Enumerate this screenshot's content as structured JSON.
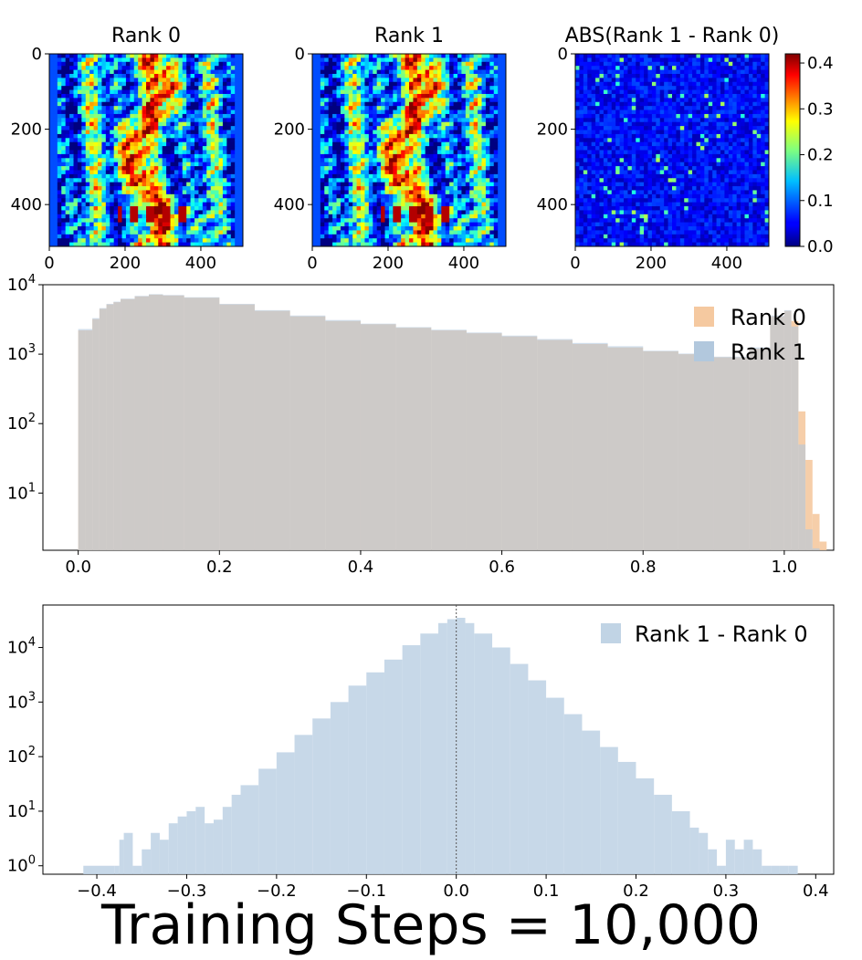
{
  "figure_title": "Training Steps = 10,000",
  "chart_data": [
    {
      "type": "heatmap",
      "title": "Rank 0",
      "x_ticks": [
        0,
        200,
        400
      ],
      "y_ticks": [
        0,
        200,
        400
      ],
      "xlim": [
        0,
        511
      ],
      "ylim": [
        511,
        0
      ],
      "colormap": "jet"
    },
    {
      "type": "heatmap",
      "title": "Rank 1",
      "x_ticks": [
        0,
        200,
        400
      ],
      "y_ticks": [
        0,
        200,
        400
      ],
      "xlim": [
        0,
        511
      ],
      "ylim": [
        511,
        0
      ],
      "colormap": "jet"
    },
    {
      "type": "heatmap",
      "title": "ABS(Rank 1 - Rank 0)",
      "x_ticks": [
        0,
        200,
        400
      ],
      "y_ticks": [
        0,
        200,
        400
      ],
      "xlim": [
        0,
        511
      ],
      "ylim": [
        511,
        0
      ],
      "colormap": "jet",
      "colorbar": {
        "range": [
          0.0,
          0.42
        ],
        "ticks": [
          "0.0",
          "0.1",
          "0.2",
          "0.3",
          "0.4"
        ]
      }
    },
    {
      "type": "bar",
      "subtype": "histogram",
      "yscale": "log",
      "xlim": [
        -0.05,
        1.07
      ],
      "ylim": [
        1.5,
        10000
      ],
      "x_ticks": [
        "0.0",
        "0.2",
        "0.4",
        "0.6",
        "0.8",
        "1.0"
      ],
      "y_ticks": [
        10,
        100,
        1000,
        10000
      ],
      "legend": "top-right",
      "series": [
        {
          "name": "Rank 0",
          "color": "#f5c9a0",
          "x": [
            0.0,
            0.01,
            0.02,
            0.03,
            0.04,
            0.05,
            0.06,
            0.08,
            0.1,
            0.12,
            0.15,
            0.2,
            0.25,
            0.3,
            0.35,
            0.4,
            0.45,
            0.5,
            0.55,
            0.6,
            0.65,
            0.7,
            0.75,
            0.8,
            0.85,
            0.9,
            0.95,
            0.98,
            1.0,
            1.01,
            1.02,
            1.03,
            1.04,
            1.05
          ],
          "values": [
            2200,
            2200,
            3200,
            4500,
            5200,
            5600,
            6200,
            6800,
            7200,
            7000,
            6500,
            5200,
            4200,
            3500,
            3000,
            2700,
            2400,
            2200,
            2000,
            1800,
            1600,
            1400,
            1250,
            1100,
            1000,
            900,
            1200,
            3500,
            4200,
            3000,
            150,
            30,
            5,
            2
          ]
        },
        {
          "name": "Rank 1",
          "color": "#b2c8dd",
          "x": [
            0.0,
            0.01,
            0.02,
            0.03,
            0.04,
            0.05,
            0.06,
            0.08,
            0.1,
            0.12,
            0.15,
            0.2,
            0.25,
            0.3,
            0.35,
            0.4,
            0.45,
            0.5,
            0.55,
            0.6,
            0.65,
            0.7,
            0.75,
            0.8,
            0.85,
            0.9,
            0.95,
            0.98,
            1.0,
            1.01,
            1.02,
            1.03,
            1.04,
            1.05
          ],
          "values": [
            2300,
            2300,
            3300,
            4600,
            5300,
            5700,
            6300,
            6900,
            7300,
            7100,
            6600,
            5300,
            4300,
            3600,
            3100,
            2750,
            2450,
            2250,
            2050,
            1850,
            1650,
            1450,
            1300,
            1120,
            1020,
            920,
            1250,
            3600,
            4300,
            2500,
            50,
            3,
            1.6,
            1.5
          ]
        }
      ]
    },
    {
      "type": "bar",
      "subtype": "histogram",
      "yscale": "log",
      "xlim": [
        -0.46,
        0.42
      ],
      "ylim": [
        0.7,
        60000
      ],
      "x_ticks": [
        "−0.4",
        "−0.3",
        "−0.2",
        "−0.1",
        "0.0",
        "0.1",
        "0.2",
        "0.3",
        "0.4"
      ],
      "y_ticks": [
        1,
        10,
        100,
        1000,
        10000
      ],
      "vline": 0.0,
      "legend": "top-right",
      "series": [
        {
          "name": "Rank 1 - Rank 0",
          "color": "#c1d4e5",
          "x": [
            -0.415,
            -0.38,
            -0.375,
            -0.37,
            -0.36,
            -0.35,
            -0.34,
            -0.33,
            -0.32,
            -0.31,
            -0.3,
            -0.29,
            -0.28,
            -0.27,
            -0.26,
            -0.25,
            -0.24,
            -0.22,
            -0.2,
            -0.18,
            -0.16,
            -0.14,
            -0.12,
            -0.1,
            -0.08,
            -0.06,
            -0.04,
            -0.02,
            -0.01,
            0.0,
            0.01,
            0.02,
            0.04,
            0.06,
            0.08,
            0.1,
            0.12,
            0.14,
            0.16,
            0.18,
            0.2,
            0.22,
            0.24,
            0.26,
            0.27,
            0.28,
            0.29,
            0.3,
            0.31,
            0.32,
            0.33,
            0.34,
            0.35,
            0.36,
            0.37
          ],
          "values": [
            1,
            1,
            3,
            4,
            1,
            2,
            4,
            3,
            6,
            8,
            10,
            12,
            6,
            7,
            12,
            20,
            30,
            60,
            120,
            250,
            500,
            1000,
            2000,
            3500,
            6000,
            11000,
            18000,
            28000,
            33000,
            35000,
            28000,
            18000,
            10000,
            5000,
            2500,
            1200,
            600,
            300,
            150,
            80,
            40,
            20,
            10,
            5,
            4,
            2,
            1,
            3,
            2,
            3,
            2,
            1,
            1,
            1,
            1
          ]
        }
      ]
    }
  ]
}
